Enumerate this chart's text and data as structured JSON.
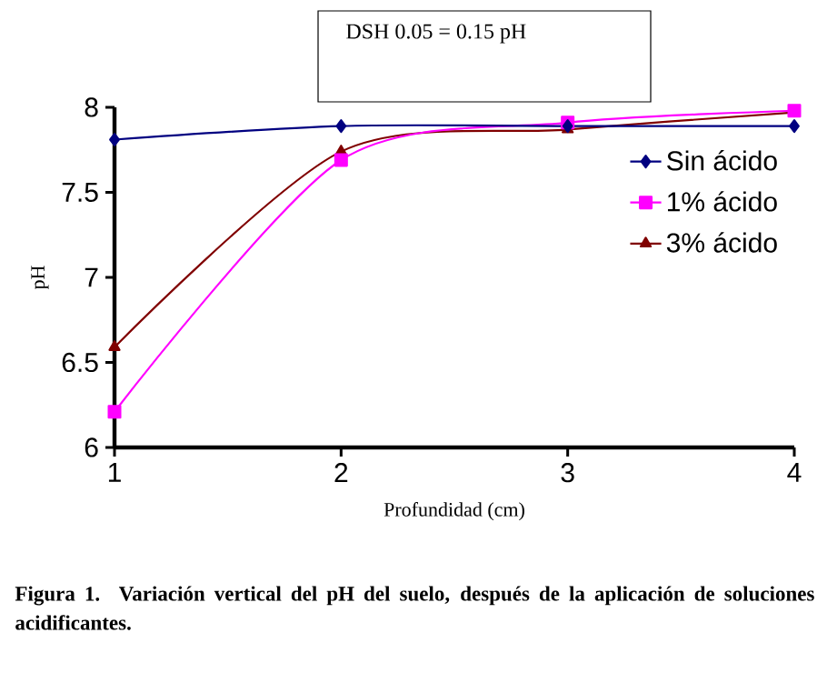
{
  "chart_data": {
    "type": "line",
    "xlabel": "Profundidad (cm)",
    "ylabel": "pH",
    "xlim": [
      1,
      4
    ],
    "xticks": [
      1,
      2,
      3,
      4
    ],
    "ylim": [
      6,
      8
    ],
    "yticks": [
      6,
      6.5,
      7,
      7.5,
      8
    ],
    "legend": "right",
    "grid": false,
    "line_style": "solid",
    "x": [
      1,
      2,
      3,
      4
    ],
    "series": [
      {
        "name": "Sin ácido",
        "color": "#000080",
        "marker": "diamond",
        "values": [
          7.81,
          7.89,
          7.89,
          7.89
        ]
      },
      {
        "name": "1% ácido",
        "color": "#ff00ff",
        "marker": "square",
        "values": [
          6.21,
          7.69,
          7.91,
          7.98
        ]
      },
      {
        "name": "3% ácido",
        "color": "#800000",
        "marker": "triangle",
        "values": [
          6.59,
          7.74,
          7.87,
          7.97
        ]
      }
    ],
    "annotations": [
      "DSH 0.05 = 0.15 pH",
      "Figura 1.  Variación vertical del pH del suelo, después de la aplicación de soluciones acidificantes."
    ]
  }
}
